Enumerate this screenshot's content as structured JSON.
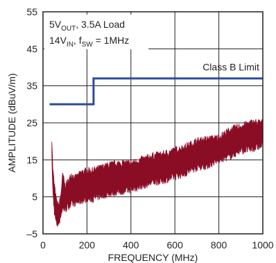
{
  "chart_data": {
    "type": "line",
    "xlabel": "FREQUENCY (MHz)",
    "ylabel": "AMPLITUDE (dBuV/m)",
    "xlim": [
      0,
      1000
    ],
    "ylim": [
      -5,
      55
    ],
    "x_ticks": [
      0,
      200,
      400,
      600,
      800,
      1000
    ],
    "y_ticks": [
      -5,
      5,
      15,
      25,
      35,
      45,
      55
    ],
    "x_tick_labels": [
      "0",
      "200",
      "400",
      "600",
      "800",
      "1000"
    ],
    "y_tick_labels": [
      "–5",
      "5",
      "15",
      "25",
      "35",
      "45",
      "55"
    ],
    "grid": true,
    "annotation": {
      "line1": {
        "a": "5V",
        "a_sub": "OUT",
        "b": ", 3.5A Load"
      },
      "line2": {
        "a": "14V",
        "a_sub": "IN",
        "b": ", f",
        "b_sub": "SW",
        "c": " = 1MHz"
      }
    },
    "series": [
      {
        "name": "Class B Limit",
        "color": "#2b4c9b",
        "x": [
          30,
          230,
          230,
          1000
        ],
        "y": [
          30,
          30,
          37,
          37
        ]
      },
      {
        "color": "#8b0d25",
        "style": "band",
        "x": [
          40,
          45,
          52,
          58,
          65,
          72,
          80,
          90,
          100,
          115,
          130,
          150,
          175,
          200,
          225,
          250,
          275,
          300,
          350,
          400,
          450,
          500,
          550,
          600,
          650,
          700,
          750,
          800,
          850,
          900,
          950,
          1000
        ],
        "y_upper": [
          21,
          12,
          8,
          5,
          3,
          2.5,
          5,
          11,
          8,
          9,
          11,
          10,
          11.5,
          12,
          12,
          12.5,
          13,
          13.5,
          14,
          14,
          15,
          16,
          16.5,
          17.5,
          18.5,
          20,
          20.5,
          21,
          23,
          24,
          25,
          25
        ],
        "y_lower": [
          16,
          6,
          1,
          -1.5,
          -2.5,
          -2,
          0,
          2,
          1.5,
          2.5,
          3,
          3.5,
          4,
          4.5,
          4.5,
          5,
          5.5,
          6,
          6.5,
          7,
          8,
          9,
          9.5,
          10.5,
          11.5,
          13,
          13.5,
          15,
          16,
          17.5,
          18,
          19
        ]
      }
    ]
  }
}
